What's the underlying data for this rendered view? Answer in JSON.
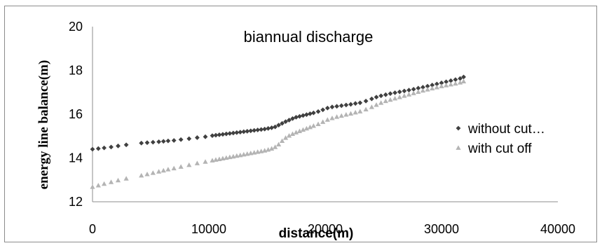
{
  "chart_data": {
    "type": "scatter",
    "title": "biannual discharge",
    "xlabel": "distance(m)",
    "ylabel": "energy line balance(m)",
    "xlim": [
      0,
      40000
    ],
    "ylim": [
      12,
      20
    ],
    "x_ticks": [
      "0",
      "10000",
      "20000",
      "30000",
      "40000"
    ],
    "y_ticks": [
      "12",
      "14",
      "16",
      "18",
      "20"
    ],
    "grid": false,
    "legend_position": "right",
    "series": [
      {
        "name": "without cut…",
        "marker": "diamond",
        "color": "#404040",
        "points": [
          [
            0,
            14.4
          ],
          [
            500,
            14.43
          ],
          [
            1000,
            14.46
          ],
          [
            1600,
            14.5
          ],
          [
            2200,
            14.55
          ],
          [
            2900,
            14.6
          ],
          [
            4200,
            14.68
          ],
          [
            4700,
            14.7
          ],
          [
            5200,
            14.72
          ],
          [
            5700,
            14.74
          ],
          [
            6100,
            14.76
          ],
          [
            6500,
            14.78
          ],
          [
            7000,
            14.8
          ],
          [
            7600,
            14.84
          ],
          [
            8300,
            14.88
          ],
          [
            9000,
            14.93
          ],
          [
            9700,
            14.97
          ],
          [
            10300,
            15.02
          ],
          [
            10600,
            15.04
          ],
          [
            10900,
            15.06
          ],
          [
            11200,
            15.08
          ],
          [
            11500,
            15.1
          ],
          [
            11800,
            15.12
          ],
          [
            12100,
            15.14
          ],
          [
            12400,
            15.16
          ],
          [
            12700,
            15.18
          ],
          [
            13000,
            15.2
          ],
          [
            13300,
            15.22
          ],
          [
            13600,
            15.24
          ],
          [
            13900,
            15.26
          ],
          [
            14200,
            15.28
          ],
          [
            14500,
            15.3
          ],
          [
            14800,
            15.32
          ],
          [
            15100,
            15.35
          ],
          [
            15400,
            15.38
          ],
          [
            15700,
            15.42
          ],
          [
            16000,
            15.5
          ],
          [
            16300,
            15.58
          ],
          [
            16600,
            15.66
          ],
          [
            16900,
            15.73
          ],
          [
            17200,
            15.8
          ],
          [
            17500,
            15.86
          ],
          [
            17800,
            15.9
          ],
          [
            18100,
            15.94
          ],
          [
            18400,
            15.98
          ],
          [
            18700,
            16.02
          ],
          [
            19000,
            16.06
          ],
          [
            19400,
            16.12
          ],
          [
            19800,
            16.2
          ],
          [
            20200,
            16.28
          ],
          [
            20600,
            16.33
          ],
          [
            21000,
            16.36
          ],
          [
            21400,
            16.39
          ],
          [
            21800,
            16.42
          ],
          [
            22200,
            16.45
          ],
          [
            22600,
            16.49
          ],
          [
            23000,
            16.52
          ],
          [
            23500,
            16.6
          ],
          [
            24000,
            16.7
          ],
          [
            24400,
            16.78
          ],
          [
            24800,
            16.84
          ],
          [
            25200,
            16.89
          ],
          [
            25600,
            16.94
          ],
          [
            26000,
            16.98
          ],
          [
            26400,
            17.02
          ],
          [
            26800,
            17.06
          ],
          [
            27200,
            17.1
          ],
          [
            27600,
            17.14
          ],
          [
            28000,
            17.19
          ],
          [
            28400,
            17.23
          ],
          [
            28800,
            17.28
          ],
          [
            29200,
            17.33
          ],
          [
            29600,
            17.38
          ],
          [
            30000,
            17.43
          ],
          [
            30400,
            17.48
          ],
          [
            30800,
            17.53
          ],
          [
            31200,
            17.58
          ],
          [
            31600,
            17.63
          ],
          [
            31900,
            17.7
          ]
        ]
      },
      {
        "name": "with cut off",
        "marker": "triangle",
        "color": "#b4b4b4",
        "points": [
          [
            0,
            12.68
          ],
          [
            500,
            12.75
          ],
          [
            1000,
            12.82
          ],
          [
            1600,
            12.9
          ],
          [
            2200,
            12.98
          ],
          [
            2900,
            13.06
          ],
          [
            4200,
            13.2
          ],
          [
            4700,
            13.26
          ],
          [
            5200,
            13.32
          ],
          [
            5700,
            13.38
          ],
          [
            6100,
            13.43
          ],
          [
            6500,
            13.48
          ],
          [
            7000,
            13.53
          ],
          [
            7600,
            13.6
          ],
          [
            8300,
            13.68
          ],
          [
            9000,
            13.76
          ],
          [
            9700,
            13.83
          ],
          [
            10300,
            13.89
          ],
          [
            10600,
            13.92
          ],
          [
            10900,
            13.95
          ],
          [
            11200,
            13.98
          ],
          [
            11500,
            14.01
          ],
          [
            11800,
            14.04
          ],
          [
            12100,
            14.07
          ],
          [
            12400,
            14.1
          ],
          [
            12700,
            14.13
          ],
          [
            13000,
            14.16
          ],
          [
            13300,
            14.19
          ],
          [
            13600,
            14.22
          ],
          [
            13900,
            14.25
          ],
          [
            14200,
            14.28
          ],
          [
            14500,
            14.31
          ],
          [
            14800,
            14.34
          ],
          [
            15100,
            14.38
          ],
          [
            15400,
            14.43
          ],
          [
            15700,
            14.5
          ],
          [
            16000,
            14.62
          ],
          [
            16300,
            14.78
          ],
          [
            16600,
            14.92
          ],
          [
            16900,
            15.02
          ],
          [
            17200,
            15.1
          ],
          [
            17500,
            15.17
          ],
          [
            17800,
            15.23
          ],
          [
            18100,
            15.29
          ],
          [
            18400,
            15.35
          ],
          [
            18700,
            15.41
          ],
          [
            19000,
            15.47
          ],
          [
            19400,
            15.55
          ],
          [
            19800,
            15.65
          ],
          [
            20200,
            15.75
          ],
          [
            20600,
            15.82
          ],
          [
            21000,
            15.88
          ],
          [
            21400,
            15.93
          ],
          [
            21800,
            15.98
          ],
          [
            22200,
            16.03
          ],
          [
            22600,
            16.08
          ],
          [
            23000,
            16.13
          ],
          [
            23500,
            16.22
          ],
          [
            24000,
            16.33
          ],
          [
            24400,
            16.43
          ],
          [
            24800,
            16.52
          ],
          [
            25200,
            16.6
          ],
          [
            25600,
            16.66
          ],
          [
            26000,
            16.72
          ],
          [
            26400,
            16.78
          ],
          [
            26800,
            16.84
          ],
          [
            27200,
            16.9
          ],
          [
            27600,
            16.96
          ],
          [
            28000,
            17.02
          ],
          [
            28400,
            17.08
          ],
          [
            28800,
            17.13
          ],
          [
            29200,
            17.18
          ],
          [
            29600,
            17.23
          ],
          [
            30000,
            17.28
          ],
          [
            30400,
            17.32
          ],
          [
            30800,
            17.36
          ],
          [
            31200,
            17.4
          ],
          [
            31600,
            17.45
          ],
          [
            31900,
            17.5
          ]
        ]
      }
    ]
  }
}
